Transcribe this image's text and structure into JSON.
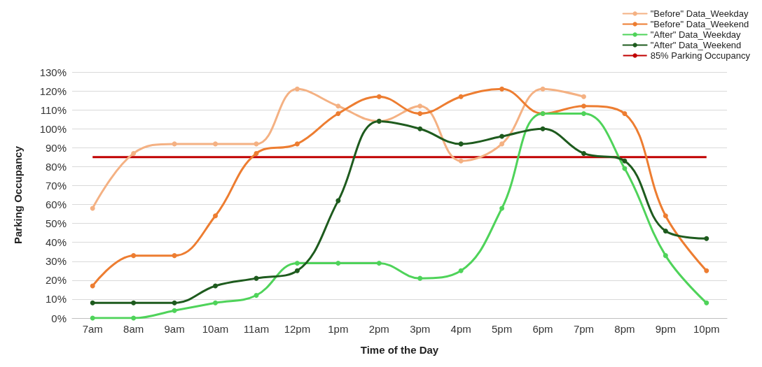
{
  "chart_data": {
    "type": "line",
    "xlabel": "Time of the Day",
    "ylabel": "Parking Occupancy",
    "categories": [
      "7am",
      "8am",
      "9am",
      "10am",
      "11am",
      "12pm",
      "1pm",
      "2pm",
      "3pm",
      "4pm",
      "5pm",
      "6pm",
      "7pm",
      "8pm",
      "9pm",
      "10pm"
    ],
    "series": [
      {
        "name": "\"Before\" Data_Weekday",
        "color": "#f4b183",
        "values": [
          58,
          87,
          92,
          92,
          92,
          121,
          112,
          104,
          112,
          83,
          92,
          121,
          117,
          null,
          null,
          null
        ]
      },
      {
        "name": "\"Before\" Data_Weekend",
        "color": "#ed7d31",
        "values": [
          17,
          33,
          33,
          54,
          87,
          92,
          108,
          117,
          108,
          117,
          121,
          108,
          112,
          108,
          54,
          25
        ]
      },
      {
        "name": "\"After\" Data_Weekday",
        "color": "#4fd35a",
        "values": [
          0,
          0,
          4,
          8,
          12,
          29,
          29,
          29,
          21,
          25,
          58,
          108,
          108,
          79,
          33,
          8
        ]
      },
      {
        "name": "\"After\" Data_Weekend",
        "color": "#1e5b1e",
        "values": [
          8,
          8,
          8,
          17,
          21,
          25,
          62,
          104,
          100,
          92,
          96,
          100,
          87,
          83,
          46,
          42
        ]
      }
    ],
    "ref_lines": [
      {
        "axis": "y",
        "value": 85,
        "label": "85% Parking Occupancy",
        "color": "#c00000"
      }
    ],
    "ylim": [
      0,
      130
    ],
    "yticks": [
      {
        "value": 0,
        "label": "0%"
      },
      {
        "value": 10,
        "label": "10%"
      },
      {
        "value": 20,
        "label": "20%"
      },
      {
        "value": 30,
        "label": "30%"
      },
      {
        "value": 40,
        "label": "40%"
      },
      {
        "value": 50,
        "label": "50%"
      },
      {
        "value": 60,
        "label": "60%"
      },
      {
        "value": 70,
        "label": "70%"
      },
      {
        "value": 80,
        "label": "80%"
      },
      {
        "value": 90,
        "label": "90%"
      },
      {
        "value": 100,
        "label": "100%"
      },
      {
        "value": 110,
        "label": "110%"
      },
      {
        "value": 120,
        "label": "120%"
      },
      {
        "value": 130,
        "label": "130%"
      }
    ],
    "grid": "y",
    "legend": "top right",
    "marker": "circle",
    "line_style": "solid"
  }
}
